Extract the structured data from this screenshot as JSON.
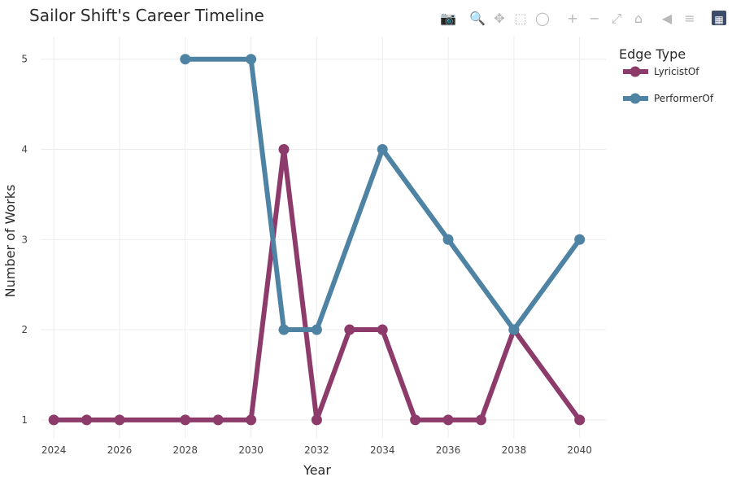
{
  "chart_data": {
    "type": "line",
    "title": "Sailor Shift's Career Timeline",
    "xlabel": "Year",
    "ylabel": "Number of Works",
    "xlim": [
      2023.6,
      2040.8
    ],
    "ylim": [
      0.8,
      5.25
    ],
    "x_ticks": [
      2024,
      2026,
      2028,
      2030,
      2032,
      2034,
      2036,
      2038,
      2040
    ],
    "y_ticks": [
      1,
      2,
      3,
      4,
      5
    ],
    "grid": true,
    "legend": {
      "title": "Edge Type",
      "position": "right-top"
    },
    "series": [
      {
        "name": "LyricistOf",
        "color": "#8c3b6b",
        "x": [
          2024,
          2025,
          2026,
          2028,
          2029,
          2030,
          2031,
          2032,
          2033,
          2034,
          2035,
          2036,
          2037,
          2038,
          2040
        ],
        "y": [
          1,
          1,
          1,
          1,
          1,
          1,
          4,
          1,
          2,
          2,
          1,
          1,
          1,
          2,
          1
        ]
      },
      {
        "name": "PerformerOf",
        "color": "#4e83a3",
        "x": [
          2028,
          2030,
          2031,
          2032,
          2034,
          2036,
          2038,
          2040
        ],
        "y": [
          5,
          5,
          2,
          2,
          4,
          3,
          2,
          3
        ]
      }
    ]
  },
  "toolbar": {
    "icons": [
      {
        "name": "camera-icon",
        "glyph": "📷"
      },
      {
        "name": "zoom-icon",
        "glyph": "🔍"
      },
      {
        "name": "pan-icon",
        "glyph": "✥"
      },
      {
        "name": "box-select-icon",
        "glyph": "⬚"
      },
      {
        "name": "lasso-select-icon",
        "glyph": "◯"
      },
      {
        "name": "zoom-in-icon",
        "glyph": "+"
      },
      {
        "name": "zoom-out-icon",
        "glyph": "−"
      },
      {
        "name": "autoscale-icon",
        "glyph": "⤢"
      },
      {
        "name": "reset-axes-icon",
        "glyph": "⌂"
      },
      {
        "name": "spike-lines-icon",
        "glyph": "◀"
      },
      {
        "name": "compare-hover-icon",
        "glyph": "≡"
      },
      {
        "name": "plotly-logo-icon",
        "glyph": "▦"
      }
    ]
  }
}
